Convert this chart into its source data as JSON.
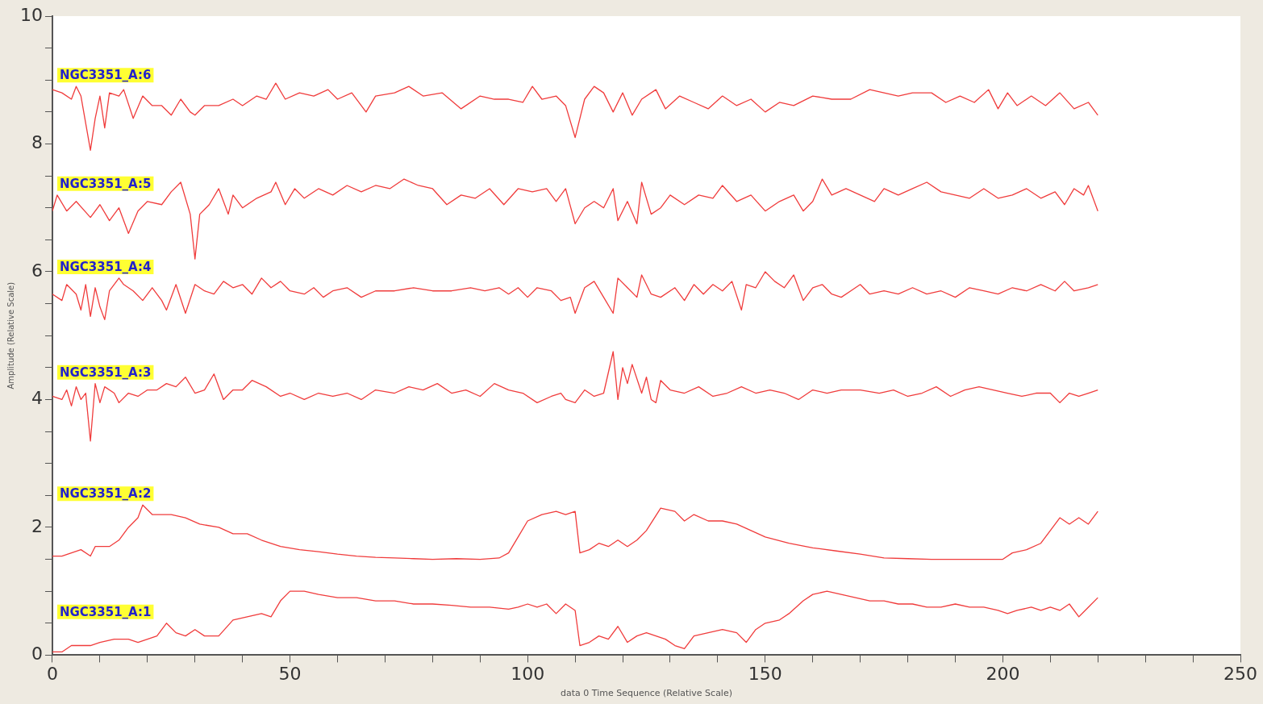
{
  "chart_data": {
    "type": "line",
    "xlabel": "data 0 Time Sequence (Relative Scale)",
    "ylabel": "Amplitude (Relative Scale)",
    "xlim": [
      0,
      250
    ],
    "ylim": [
      0,
      10
    ],
    "xticks": [
      0,
      {
        "value": 10,
        "label": null
      },
      {
        "value": 20,
        "label": null
      },
      {
        "value": 30,
        "label": null
      },
      {
        "value": 40,
        "label": null
      },
      50,
      {
        "value": 60,
        "label": null
      },
      {
        "value": 70,
        "label": null
      },
      {
        "value": 80,
        "label": null
      },
      {
        "value": 90,
        "label": null
      },
      100,
      {
        "value": 110,
        "label": null
      },
      {
        "value": 120,
        "label": null
      },
      {
        "value": 130,
        "label": null
      },
      {
        "value": 140,
        "label": null
      },
      150,
      {
        "value": 160,
        "label": null
      },
      {
        "value": 170,
        "label": null
      },
      {
        "value": 180,
        "label": null
      },
      {
        "value": 190,
        "label": null
      },
      200,
      {
        "value": 210,
        "label": null
      },
      {
        "value": 220,
        "label": null
      },
      {
        "value": 230,
        "label": null
      },
      {
        "value": 240,
        "label": null
      },
      250
    ],
    "yticks": [
      0,
      {
        "value": 0.5,
        "label": null
      },
      {
        "value": 1,
        "label": null
      },
      {
        "value": 1.5,
        "label": null
      },
      2,
      {
        "value": 2.5,
        "label": null
      },
      {
        "value": 3,
        "label": null
      },
      {
        "value": 3.5,
        "label": null
      },
      4,
      {
        "value": 4.5,
        "label": null
      },
      {
        "value": 5,
        "label": null
      },
      {
        "value": 5.5,
        "label": null
      },
      6,
      {
        "value": 6.5,
        "label": null
      },
      {
        "value": 7,
        "label": null
      },
      {
        "value": 7.5,
        "label": null
      },
      8,
      {
        "value": 8.5,
        "label": null
      },
      {
        "value": 9,
        "label": null
      },
      {
        "value": 9.5,
        "label": null
      },
      10
    ],
    "series": [
      {
        "name": "NGC3351_A:6",
        "color": "#f03c3c",
        "x": [
          0,
          2,
          4,
          5,
          6,
          8,
          9,
          10,
          11,
          12,
          14,
          15,
          17,
          19,
          21,
          23,
          25,
          27,
          29,
          30,
          32,
          35,
          38,
          40,
          43,
          45,
          47,
          49,
          52,
          55,
          58,
          60,
          63,
          66,
          68,
          72,
          75,
          78,
          82,
          86,
          90,
          93,
          96,
          99,
          101,
          103,
          106,
          108,
          110,
          112,
          114,
          116,
          118,
          120,
          122,
          124,
          127,
          129,
          132,
          135,
          138,
          141,
          144,
          147,
          150,
          153,
          156,
          160,
          164,
          168,
          172,
          175,
          178,
          181,
          185,
          188,
          191,
          194,
          197,
          199,
          201,
          203,
          206,
          209,
          212,
          215,
          218,
          220
        ],
        "values": [
          8.85,
          8.8,
          8.7,
          8.9,
          8.75,
          7.9,
          8.4,
          8.75,
          8.25,
          8.8,
          8.75,
          8.85,
          8.4,
          8.75,
          8.6,
          8.6,
          8.45,
          8.7,
          8.5,
          8.45,
          8.6,
          8.6,
          8.7,
          8.6,
          8.75,
          8.7,
          8.95,
          8.7,
          8.8,
          8.75,
          8.85,
          8.7,
          8.8,
          8.5,
          8.75,
          8.8,
          8.9,
          8.75,
          8.8,
          8.55,
          8.75,
          8.7,
          8.7,
          8.65,
          8.9,
          8.7,
          8.75,
          8.6,
          8.1,
          8.7,
          8.9,
          8.8,
          8.5,
          8.8,
          8.45,
          8.7,
          8.85,
          8.55,
          8.75,
          8.65,
          8.55,
          8.75,
          8.6,
          8.7,
          8.5,
          8.65,
          8.6,
          8.75,
          8.7,
          8.7,
          8.85,
          8.8,
          8.75,
          8.8,
          8.8,
          8.65,
          8.75,
          8.65,
          8.85,
          8.55,
          8.8,
          8.6,
          8.75,
          8.6,
          8.8,
          8.55,
          8.65,
          8.45
        ]
      },
      {
        "name": "NGC3351_A:5",
        "color": "#f03c3c",
        "x": [
          0,
          1,
          3,
          5,
          8,
          10,
          12,
          14,
          16,
          18,
          20,
          23,
          25,
          27,
          29,
          30,
          31,
          33,
          35,
          37,
          38,
          40,
          43,
          46,
          47,
          49,
          51,
          53,
          56,
          59,
          62,
          65,
          68,
          71,
          74,
          77,
          80,
          83,
          86,
          89,
          92,
          95,
          98,
          101,
          104,
          106,
          108,
          110,
          112,
          114,
          116,
          118,
          119,
          121,
          123,
          124,
          126,
          128,
          130,
          133,
          136,
          139,
          141,
          144,
          147,
          150,
          153,
          156,
          158,
          160,
          162,
          164,
          167,
          170,
          173,
          175,
          178,
          181,
          184,
          187,
          190,
          193,
          196,
          199,
          202,
          205,
          208,
          211,
          213,
          215,
          217,
          218,
          220
        ],
        "values": [
          6.95,
          7.2,
          6.95,
          7.1,
          6.85,
          7.05,
          6.8,
          7.0,
          6.6,
          6.95,
          7.1,
          7.05,
          7.25,
          7.4,
          6.9,
          6.2,
          6.9,
          7.05,
          7.3,
          6.9,
          7.2,
          7.0,
          7.15,
          7.25,
          7.4,
          7.05,
          7.3,
          7.15,
          7.3,
          7.2,
          7.35,
          7.25,
          7.35,
          7.3,
          7.45,
          7.35,
          7.3,
          7.05,
          7.2,
          7.15,
          7.3,
          7.05,
          7.3,
          7.25,
          7.3,
          7.1,
          7.3,
          6.75,
          7.0,
          7.1,
          7.0,
          7.3,
          6.8,
          7.1,
          6.75,
          7.4,
          6.9,
          7.0,
          7.2,
          7.05,
          7.2,
          7.15,
          7.35,
          7.1,
          7.2,
          6.95,
          7.1,
          7.2,
          6.95,
          7.1,
          7.45,
          7.2,
          7.3,
          7.2,
          7.1,
          7.3,
          7.2,
          7.3,
          7.4,
          7.25,
          7.2,
          7.15,
          7.3,
          7.15,
          7.2,
          7.3,
          7.15,
          7.25,
          7.05,
          7.3,
          7.2,
          7.35,
          6.95
        ]
      },
      {
        "name": "NGC3351_A:4",
        "color": "#f03c3c",
        "x": [
          0,
          2,
          3,
          5,
          6,
          7,
          8,
          9,
          10,
          11,
          12,
          14,
          15,
          17,
          19,
          21,
          23,
          24,
          26,
          28,
          30,
          32,
          34,
          36,
          38,
          40,
          42,
          44,
          46,
          48,
          50,
          53,
          55,
          57,
          59,
          62,
          65,
          68,
          72,
          76,
          80,
          84,
          88,
          91,
          94,
          96,
          98,
          100,
          102,
          105,
          107,
          109,
          110,
          112,
          114,
          116,
          118,
          119,
          121,
          123,
          124,
          126,
          128,
          131,
          133,
          135,
          137,
          139,
          141,
          143,
          145,
          146,
          148,
          150,
          152,
          154,
          156,
          158,
          160,
          162,
          164,
          166,
          168,
          170,
          172,
          175,
          178,
          181,
          184,
          187,
          190,
          193,
          196,
          199,
          202,
          205,
          208,
          211,
          213,
          215,
          218,
          220
        ],
        "values": [
          5.65,
          5.55,
          5.8,
          5.65,
          5.4,
          5.8,
          5.3,
          5.75,
          5.45,
          5.25,
          5.7,
          5.9,
          5.8,
          5.7,
          5.55,
          5.75,
          5.55,
          5.4,
          5.8,
          5.35,
          5.8,
          5.7,
          5.65,
          5.85,
          5.75,
          5.8,
          5.65,
          5.9,
          5.75,
          5.85,
          5.7,
          5.65,
          5.75,
          5.6,
          5.7,
          5.75,
          5.6,
          5.7,
          5.7,
          5.75,
          5.7,
          5.7,
          5.75,
          5.7,
          5.75,
          5.65,
          5.75,
          5.6,
          5.75,
          5.7,
          5.55,
          5.6,
          5.35,
          5.75,
          5.85,
          5.6,
          5.35,
          5.9,
          5.75,
          5.6,
          5.95,
          5.65,
          5.6,
          5.75,
          5.55,
          5.8,
          5.65,
          5.8,
          5.7,
          5.85,
          5.4,
          5.8,
          5.75,
          6.0,
          5.85,
          5.75,
          5.95,
          5.55,
          5.75,
          5.8,
          5.65,
          5.6,
          5.7,
          5.8,
          5.65,
          5.7,
          5.65,
          5.75,
          5.65,
          5.7,
          5.6,
          5.75,
          5.7,
          5.65,
          5.75,
          5.7,
          5.8,
          5.7,
          5.85,
          5.7,
          5.75,
          5.8
        ]
      },
      {
        "name": "NGC3351_A:3",
        "color": "#f03c3c",
        "x": [
          0,
          2,
          3,
          4,
          5,
          6,
          7,
          8,
          9,
          10,
          11,
          13,
          14,
          16,
          18,
          20,
          22,
          24,
          26,
          28,
          30,
          32,
          34,
          36,
          38,
          40,
          42,
          45,
          48,
          50,
          53,
          56,
          59,
          62,
          65,
          68,
          72,
          75,
          78,
          81,
          84,
          87,
          90,
          93,
          96,
          99,
          102,
          105,
          107,
          108,
          110,
          112,
          114,
          116,
          118,
          119,
          120,
          121,
          122,
          124,
          125,
          126,
          127,
          128,
          130,
          133,
          136,
          139,
          142,
          145,
          148,
          151,
          154,
          157,
          160,
          163,
          166,
          170,
          174,
          177,
          180,
          183,
          186,
          189,
          192,
          195,
          198,
          201,
          204,
          207,
          210,
          212,
          214,
          216,
          218,
          220
        ],
        "values": [
          4.05,
          4.0,
          4.15,
          3.9,
          4.2,
          4.0,
          4.1,
          3.35,
          4.25,
          3.95,
          4.2,
          4.1,
          3.95,
          4.1,
          4.05,
          4.15,
          4.15,
          4.25,
          4.2,
          4.35,
          4.1,
          4.15,
          4.4,
          4.0,
          4.15,
          4.15,
          4.3,
          4.2,
          4.05,
          4.1,
          4.0,
          4.1,
          4.05,
          4.1,
          4.0,
          4.15,
          4.1,
          4.2,
          4.15,
          4.25,
          4.1,
          4.15,
          4.05,
          4.25,
          4.15,
          4.1,
          3.95,
          4.05,
          4.1,
          4.0,
          3.95,
          4.15,
          4.05,
          4.1,
          4.75,
          4.0,
          4.5,
          4.25,
          4.55,
          4.1,
          4.35,
          4.0,
          3.95,
          4.3,
          4.15,
          4.1,
          4.2,
          4.05,
          4.1,
          4.2,
          4.1,
          4.15,
          4.1,
          4.0,
          4.15,
          4.1,
          4.15,
          4.15,
          4.1,
          4.15,
          4.05,
          4.1,
          4.2,
          4.05,
          4.15,
          4.2,
          4.15,
          4.1,
          4.05,
          4.1,
          4.1,
          3.95,
          4.1,
          4.05,
          4.1,
          4.15
        ]
      },
      {
        "name": "NGC3351_A:2",
        "color": "#f03c3c",
        "x": [
          0,
          2,
          4,
          6,
          8,
          9,
          12,
          14,
          16,
          18,
          19,
          21,
          25,
          28,
          31,
          35,
          38,
          41,
          44,
          48,
          52,
          56,
          60,
          64,
          68,
          72,
          76,
          80,
          85,
          90,
          94,
          96,
          98,
          100,
          103,
          106,
          108,
          110,
          111,
          113,
          115,
          117,
          119,
          121,
          123,
          125,
          128,
          131,
          133,
          135,
          138,
          141,
          144,
          147,
          150,
          155,
          160,
          165,
          170,
          175,
          180,
          185,
          190,
          195,
          200,
          202,
          205,
          208,
          210,
          212,
          214,
          216,
          218,
          220
        ],
        "values": [
          1.55,
          1.55,
          1.6,
          1.65,
          1.55,
          1.7,
          1.7,
          1.8,
          2.0,
          2.15,
          2.35,
          2.2,
          2.2,
          2.15,
          2.05,
          2.0,
          1.9,
          1.9,
          1.8,
          1.7,
          1.65,
          1.62,
          1.58,
          1.55,
          1.53,
          1.52,
          1.51,
          1.5,
          1.51,
          1.5,
          1.52,
          1.6,
          1.85,
          2.1,
          2.2,
          2.25,
          2.2,
          2.25,
          1.6,
          1.65,
          1.75,
          1.7,
          1.8,
          1.7,
          1.8,
          1.95,
          2.3,
          2.25,
          2.1,
          2.2,
          2.1,
          2.1,
          2.05,
          1.95,
          1.85,
          1.75,
          1.68,
          1.63,
          1.58,
          1.52,
          1.51,
          1.5,
          1.5,
          1.5,
          1.5,
          1.6,
          1.65,
          1.75,
          1.95,
          2.15,
          2.05,
          2.15,
          2.05,
          2.25
        ]
      },
      {
        "name": "NGC3351_A:1",
        "color": "#f03c3c",
        "x": [
          0,
          2,
          4,
          6,
          8,
          10,
          13,
          16,
          18,
          20,
          22,
          24,
          26,
          28,
          30,
          32,
          35,
          38,
          41,
          44,
          46,
          48,
          50,
          53,
          56,
          60,
          64,
          68,
          72,
          76,
          80,
          84,
          88,
          92,
          96,
          98,
          100,
          102,
          104,
          106,
          108,
          110,
          111,
          113,
          115,
          117,
          119,
          121,
          123,
          125,
          127,
          129,
          131,
          133,
          135,
          138,
          141,
          144,
          146,
          148,
          150,
          153,
          155,
          158,
          160,
          163,
          166,
          169,
          172,
          175,
          178,
          181,
          184,
          187,
          190,
          193,
          196,
          199,
          201,
          203,
          206,
          208,
          210,
          212,
          214,
          216,
          218,
          220
        ],
        "values": [
          0.05,
          0.05,
          0.15,
          0.15,
          0.15,
          0.2,
          0.25,
          0.25,
          0.2,
          0.25,
          0.3,
          0.5,
          0.35,
          0.3,
          0.4,
          0.3,
          0.3,
          0.55,
          0.6,
          0.65,
          0.6,
          0.85,
          1.0,
          1.0,
          0.95,
          0.9,
          0.9,
          0.85,
          0.85,
          0.8,
          0.8,
          0.78,
          0.75,
          0.75,
          0.72,
          0.75,
          0.8,
          0.75,
          0.8,
          0.65,
          0.8,
          0.7,
          0.15,
          0.2,
          0.3,
          0.25,
          0.45,
          0.2,
          0.3,
          0.35,
          0.3,
          0.25,
          0.15,
          0.1,
          0.3,
          0.35,
          0.4,
          0.35,
          0.2,
          0.4,
          0.5,
          0.55,
          0.65,
          0.85,
          0.95,
          1.0,
          0.95,
          0.9,
          0.85,
          0.85,
          0.8,
          0.8,
          0.75,
          0.75,
          0.8,
          0.75,
          0.75,
          0.7,
          0.65,
          0.7,
          0.75,
          0.7,
          0.75,
          0.7,
          0.8,
          0.6,
          0.75,
          0.9
        ]
      }
    ]
  }
}
